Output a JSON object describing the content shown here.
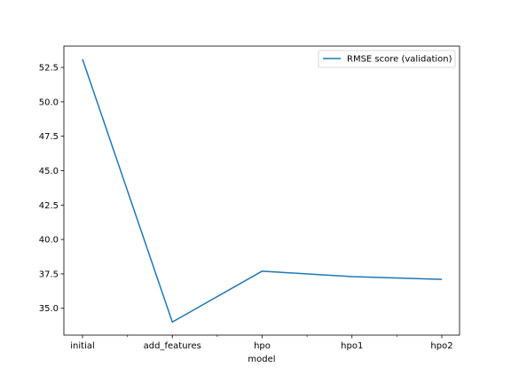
{
  "chart_data": {
    "type": "line",
    "title": "",
    "xlabel": "model",
    "ylabel": "",
    "categories": [
      "initial",
      "add_features",
      "hpo",
      "hpo1",
      "hpo2"
    ],
    "series": [
      {
        "name": "RMSE score (validation)",
        "color": "#1f77b4",
        "values": [
          53.1,
          34.0,
          37.7,
          37.3,
          37.1
        ]
      }
    ],
    "yticks": [
      35.0,
      37.5,
      40.0,
      42.5,
      45.0,
      47.5,
      50.0,
      52.5
    ],
    "ytick_labels": [
      "35.0",
      "37.5",
      "40.0",
      "42.5",
      "45.0",
      "47.5",
      "50.0",
      "52.5"
    ],
    "ylim": [
      33.05,
      54.05
    ],
    "grid": false,
    "legend_position": "top-right"
  }
}
